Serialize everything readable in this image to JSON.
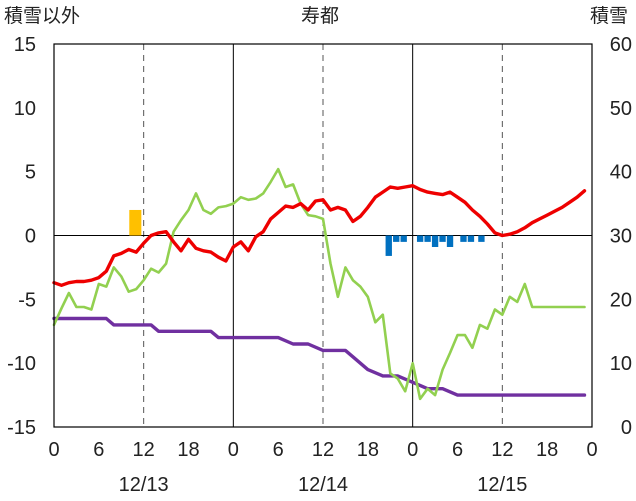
{
  "chart_data": {
    "type": "line",
    "title": "寿都",
    "ylabel_left": "積雪以外",
    "ylabel_right": "積雪",
    "left_axis": {
      "ticks": [
        15,
        10,
        5,
        0,
        -5,
        -10,
        -15
      ],
      "range": [
        -15,
        15
      ]
    },
    "right_axis": {
      "ticks": [
        60,
        50,
        40,
        30,
        20,
        10,
        0
      ],
      "range": [
        0,
        60
      ]
    },
    "x_axis": {
      "tick_labels": [
        "0",
        "12",
        "0",
        "12",
        "0",
        "12",
        "0"
      ],
      "tick_labels_full": [
        "0",
        "6",
        "12",
        "18",
        "0",
        "6",
        "12",
        "18",
        "0",
        "6",
        "12",
        "18",
        "0"
      ],
      "dates": [
        "12/13",
        "12/14",
        "12/15"
      ],
      "range_hours": [
        0,
        72
      ]
    },
    "grid": {
      "vertical_solid_hours": [
        24,
        48
      ],
      "vertical_dashed_hours": [
        12,
        36,
        60
      ],
      "horizontal_zero": true
    },
    "colors": {
      "temperature": "#ee0000",
      "green_series": "#92d050",
      "snow_depth": "#7030a0",
      "positive_bars": "#ffc000",
      "negative_bars": "#0070c0"
    },
    "series": [
      {
        "key": "temperature",
        "axis": "left",
        "x": [
          0,
          1,
          2,
          3,
          4,
          5,
          6,
          7,
          8,
          9,
          10,
          11,
          12,
          13,
          14,
          15,
          16,
          17,
          18,
          19,
          20,
          21,
          22,
          23,
          24,
          25,
          26,
          27,
          28,
          29,
          30,
          31,
          32,
          33,
          34,
          35,
          36,
          37,
          38,
          39,
          40,
          41,
          42,
          43,
          44,
          45,
          46,
          47,
          48,
          49,
          50,
          51,
          52,
          53,
          54,
          55,
          56,
          57,
          58,
          59,
          60,
          61,
          62,
          63,
          64,
          65,
          66,
          67,
          68,
          69,
          70,
          71
        ],
        "y": [
          -3.7,
          -3.9,
          -3.7,
          -3.6,
          -3.6,
          -3.5,
          -3.3,
          -2.8,
          -1.6,
          -1.4,
          -1.1,
          -1.3,
          -0.6,
          0.0,
          0.2,
          0.3,
          -0.5,
          -1.2,
          -0.3,
          -1.0,
          -1.2,
          -1.3,
          -1.7,
          -2.0,
          -0.9,
          -0.5,
          -1.2,
          -0.1,
          0.3,
          1.3,
          1.8,
          2.3,
          2.2,
          2.5,
          2.0,
          2.7,
          2.8,
          2.0,
          2.2,
          2.0,
          1.1,
          1.5,
          2.2,
          3.0,
          3.4,
          3.8,
          3.7,
          3.8,
          3.9,
          3.6,
          3.4,
          3.3,
          3.2,
          3.4,
          3.0,
          2.6,
          2.0,
          1.5,
          0.9,
          0.2,
          0.0,
          0.1,
          0.3,
          0.6,
          1.0,
          1.3,
          1.6,
          1.9,
          2.2,
          2.6,
          3.0,
          3.5
        ]
      },
      {
        "key": "green_series",
        "axis": "left",
        "x": [
          0,
          1,
          2,
          3,
          4,
          5,
          6,
          7,
          8,
          9,
          10,
          11,
          12,
          13,
          14,
          15,
          16,
          17,
          18,
          19,
          20,
          21,
          22,
          23,
          24,
          25,
          26,
          27,
          28,
          29,
          30,
          31,
          32,
          33,
          34,
          35,
          36,
          37,
          38,
          39,
          40,
          41,
          42,
          43,
          44,
          45,
          46,
          47,
          48,
          49,
          50,
          51,
          52,
          53,
          54,
          55,
          56,
          57,
          58,
          59,
          60,
          61,
          62,
          63,
          64,
          65,
          66,
          67,
          68,
          69,
          70,
          71
        ],
        "y": [
          -7.0,
          -5.7,
          -4.5,
          -5.6,
          -5.6,
          -5.8,
          -3.8,
          -4.0,
          -2.5,
          -3.2,
          -4.4,
          -4.2,
          -3.5,
          -2.6,
          -2.9,
          -2.2,
          0.3,
          1.2,
          2.0,
          3.3,
          2.0,
          1.7,
          2.2,
          2.3,
          2.5,
          3.0,
          2.8,
          2.9,
          3.3,
          4.2,
          5.2,
          3.8,
          4.0,
          2.5,
          1.6,
          1.5,
          1.3,
          -2.2,
          -4.8,
          -2.5,
          -3.5,
          -4.0,
          -4.8,
          -6.8,
          -6.2,
          -10.8,
          -11.2,
          -12.2,
          -10.0,
          -12.8,
          -12.0,
          -12.5,
          -10.5,
          -9.2,
          -7.8,
          -7.8,
          -8.8,
          -7.0,
          -7.3,
          -5.8,
          -6.2,
          -4.8,
          -5.2,
          -3.8,
          -5.6,
          -5.6,
          -5.6,
          -5.6,
          -5.6,
          -5.6,
          -5.6,
          -5.6
        ]
      },
      {
        "key": "snow_depth",
        "axis": "right",
        "x": [
          0,
          4,
          7,
          8,
          10,
          11,
          12,
          13,
          14,
          16,
          18,
          19,
          20,
          21,
          22,
          23,
          24,
          26,
          28,
          30,
          32,
          33,
          34,
          36,
          38,
          39,
          40,
          42,
          44,
          46,
          48,
          50,
          52,
          54,
          56,
          58,
          59,
          60,
          61,
          62,
          63,
          64,
          65,
          66,
          67,
          68,
          69,
          70,
          71
        ],
        "y": [
          17,
          17,
          17,
          16,
          16,
          16,
          16,
          16,
          15,
          15,
          15,
          15,
          15,
          15,
          14,
          14,
          14,
          14,
          14,
          14,
          13,
          13,
          13,
          12,
          12,
          12,
          11,
          9,
          8,
          8,
          7,
          6,
          6,
          5,
          5,
          5,
          5,
          5,
          5,
          5,
          5,
          5,
          5,
          5,
          5,
          5,
          5,
          5,
          5
        ]
      }
    ],
    "bars": {
      "axis": "left",
      "positive": [
        {
          "x": 10.5,
          "value": 2.0
        }
      ],
      "negative": [
        {
          "x": 44.8,
          "value": -1.6
        },
        {
          "x": 45.8,
          "value": -0.5
        },
        {
          "x": 46.8,
          "value": -0.5
        },
        {
          "x": 49.0,
          "value": -0.5
        },
        {
          "x": 50.0,
          "value": -0.5
        },
        {
          "x": 51.0,
          "value": -0.9
        },
        {
          "x": 52.0,
          "value": -0.5
        },
        {
          "x": 53.0,
          "value": -0.9
        },
        {
          "x": 54.8,
          "value": -0.5
        },
        {
          "x": 55.8,
          "value": -0.5
        },
        {
          "x": 57.2,
          "value": -0.5
        }
      ]
    }
  }
}
